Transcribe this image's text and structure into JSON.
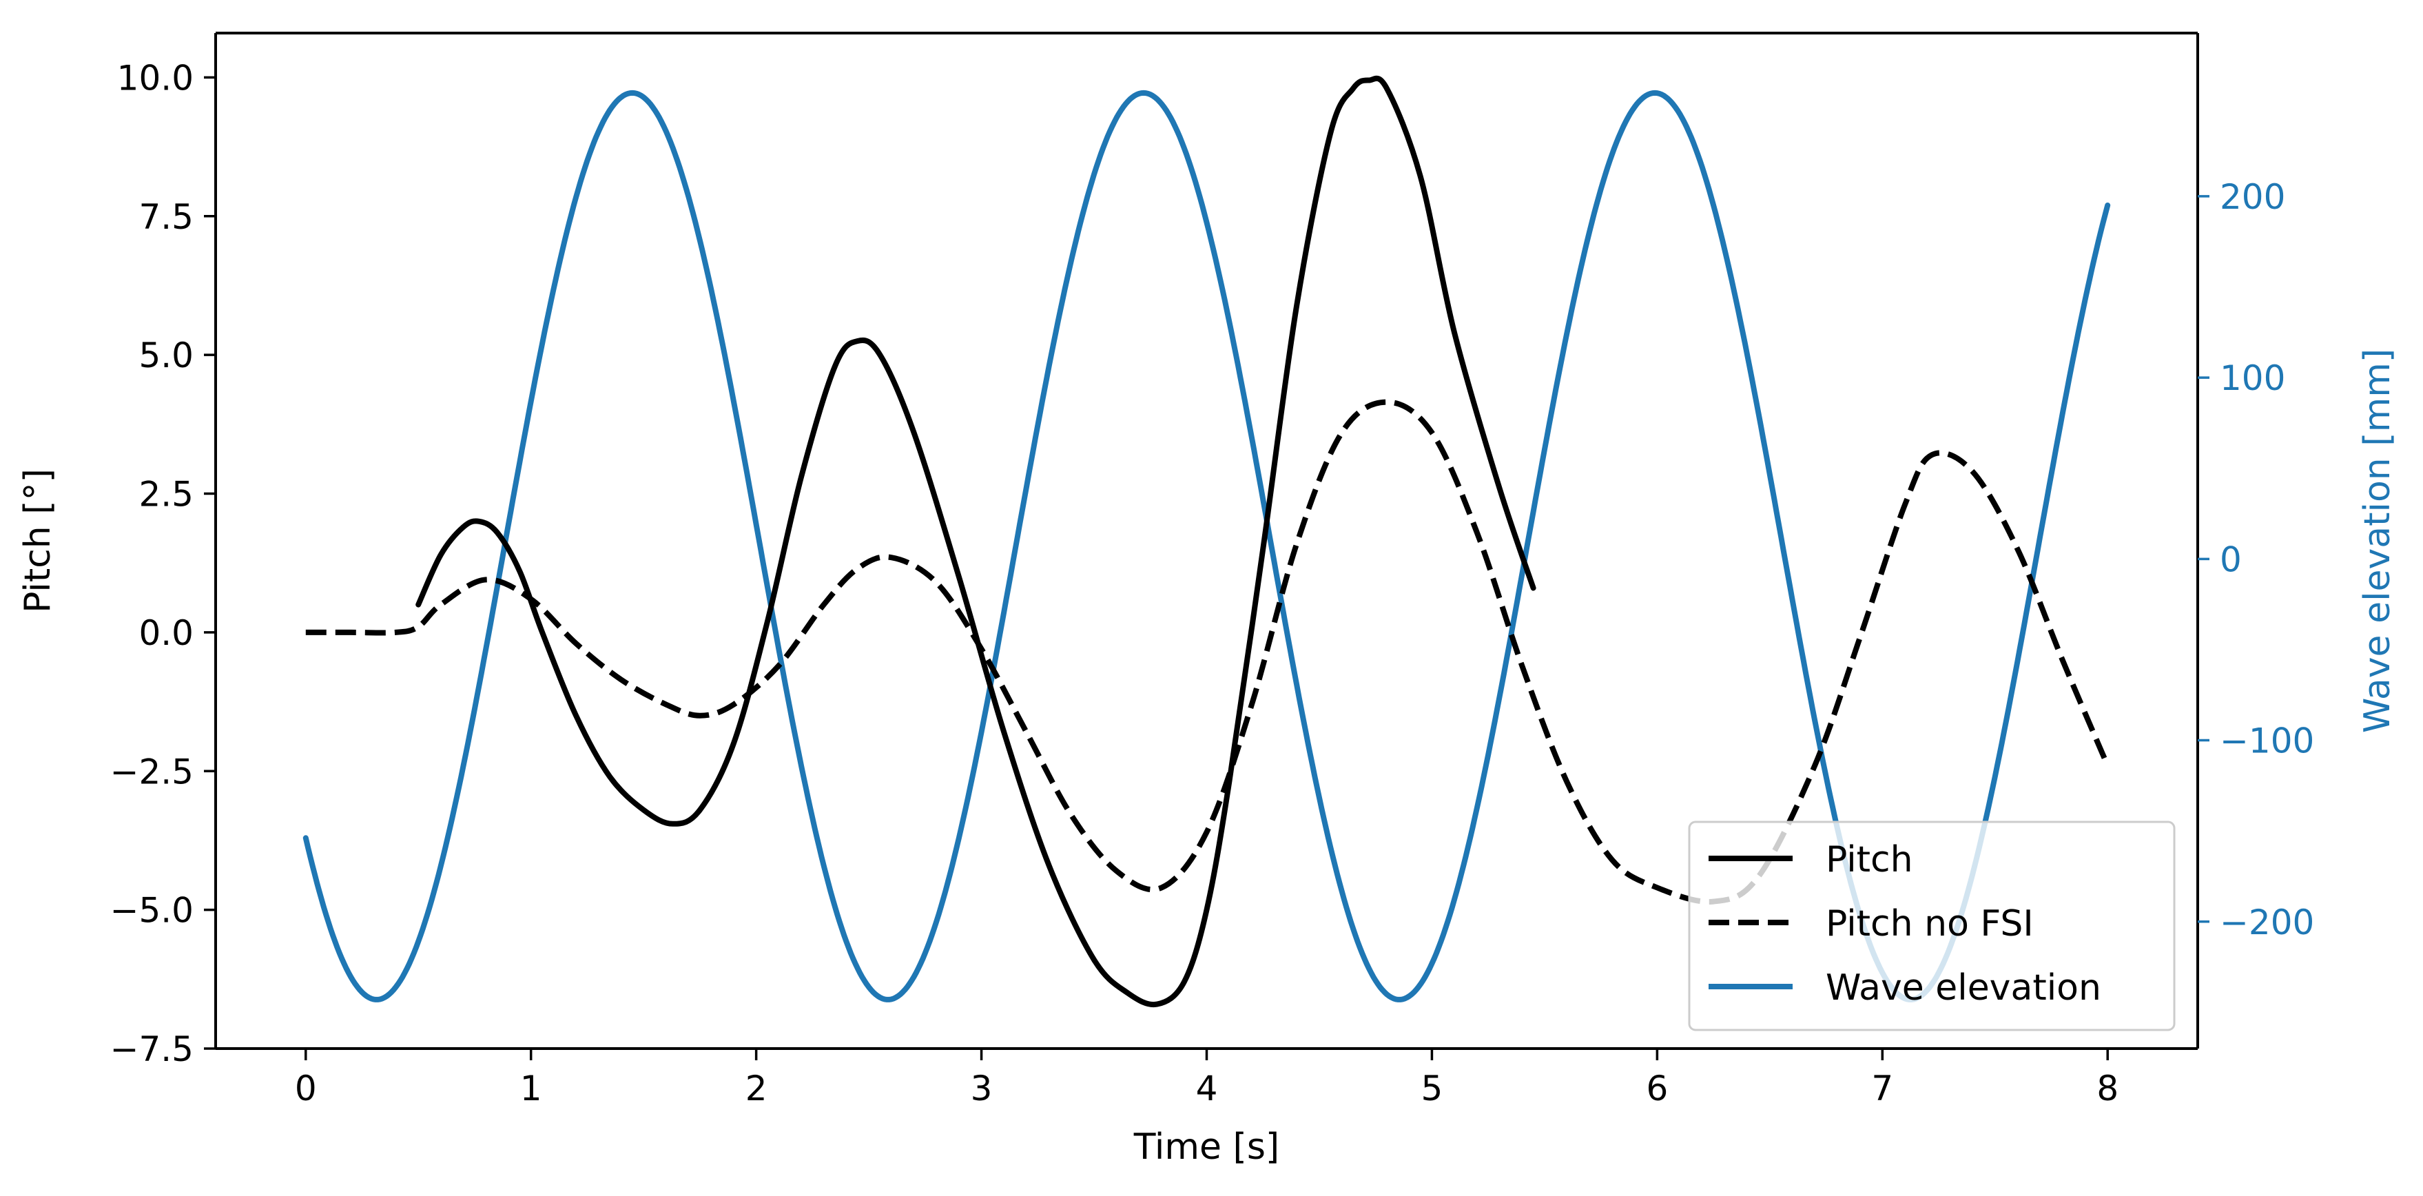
{
  "chart_data": {
    "type": "line",
    "title": "",
    "xlabel": "Time [s]",
    "ylabel_left": "Pitch [°]",
    "ylabel_right": "Wave elevation [mm]",
    "xlim": [
      -0.4,
      8.4
    ],
    "ylim_left": [
      -7.5,
      10.8
    ],
    "ylim_right": [
      -270,
      290
    ],
    "x_ticks": [
      0,
      1,
      2,
      3,
      4,
      5,
      6,
      7,
      8
    ],
    "x_tick_labels": [
      "0",
      "1",
      "2",
      "3",
      "4",
      "5",
      "6",
      "7",
      "8"
    ],
    "y_left_ticks": [
      -7.5,
      -5.0,
      -2.5,
      0.0,
      2.5,
      5.0,
      7.5,
      10.0
    ],
    "y_left_tick_labels": [
      "−7.5",
      "−5.0",
      "−2.5",
      "0.0",
      "2.5",
      "5.0",
      "7.5",
      "10.0"
    ],
    "y_right_ticks": [
      -200,
      -100,
      0,
      100,
      200
    ],
    "y_right_tick_labels": [
      "−200",
      "−100",
      "0",
      "100",
      "200"
    ],
    "grid": false,
    "legend_position": "bottom-right",
    "colors": {
      "pitch": "#000000",
      "pitch_no_fsi": "#000000",
      "wave": "#1f77b4",
      "axis": "#000000"
    },
    "series": [
      {
        "name": "Pitch",
        "axis": "left",
        "style": "solid",
        "x": [
          0.5,
          0.6,
          0.7,
          0.77,
          0.85,
          0.95,
          1.05,
          1.2,
          1.35,
          1.5,
          1.63,
          1.75,
          1.9,
          2.05,
          2.2,
          2.35,
          2.45,
          2.55,
          2.7,
          2.9,
          3.1,
          3.3,
          3.5,
          3.65,
          3.78,
          3.9,
          4.0,
          4.1,
          4.25,
          4.4,
          4.55,
          4.65,
          4.72,
          4.8,
          4.95,
          5.1,
          5.3,
          5.45
        ],
        "y": [
          0.5,
          1.4,
          1.9,
          2.0,
          1.8,
          1.1,
          0.0,
          -1.5,
          -2.6,
          -3.2,
          -3.45,
          -3.2,
          -2.0,
          0.2,
          2.8,
          4.8,
          5.25,
          5.0,
          3.6,
          1.0,
          -1.8,
          -4.2,
          -5.9,
          -6.5,
          -6.7,
          -6.3,
          -5.0,
          -2.7,
          1.5,
          5.9,
          9.0,
          9.8,
          9.95,
          9.8,
          8.2,
          5.4,
          2.6,
          0.8
        ]
      },
      {
        "name": "Pitch no FSI",
        "axis": "left",
        "style": "dashed",
        "x": [
          0.0,
          0.2,
          0.4,
          0.5,
          0.6,
          0.8,
          1.0,
          1.2,
          1.4,
          1.6,
          1.75,
          1.9,
          2.1,
          2.3,
          2.45,
          2.6,
          2.8,
          3.0,
          3.2,
          3.4,
          3.6,
          3.8,
          4.0,
          4.2,
          4.4,
          4.6,
          4.8,
          5.0,
          5.2,
          5.4,
          5.6,
          5.8,
          6.0,
          6.25,
          6.45,
          6.7,
          6.9,
          7.1,
          7.22,
          7.4,
          7.6,
          7.8,
          8.0
        ],
        "y": [
          0.0,
          0.0,
          0.0,
          0.1,
          0.5,
          0.95,
          0.6,
          -0.2,
          -0.85,
          -1.3,
          -1.5,
          -1.3,
          -0.6,
          0.5,
          1.15,
          1.35,
          0.9,
          -0.3,
          -1.8,
          -3.3,
          -4.3,
          -4.6,
          -3.6,
          -1.3,
          1.6,
          3.6,
          4.15,
          3.6,
          1.8,
          -0.6,
          -2.7,
          -4.1,
          -4.6,
          -4.85,
          -4.4,
          -2.4,
          -0.1,
          2.3,
          3.2,
          2.9,
          1.5,
          -0.5,
          -2.4
        ]
      },
      {
        "name": "Wave elevation",
        "axis": "right",
        "style": "solid",
        "period": 2.27,
        "amplitude": 250,
        "peak_times": [
          1.45,
          3.73,
          6.0
        ],
        "trough_times": [
          0.31,
          2.59,
          4.86,
          7.14
        ],
        "x": [
          0.0,
          0.31,
          0.88,
          1.45,
          2.02,
          2.59,
          3.16,
          3.73,
          4.3,
          4.86,
          5.43,
          6.0,
          6.57,
          7.14,
          8.0
        ],
        "y": [
          -165,
          -243,
          0,
          257,
          0,
          -243,
          0,
          257,
          0,
          -243,
          0,
          257,
          0,
          -243,
          185
        ]
      }
    ]
  }
}
